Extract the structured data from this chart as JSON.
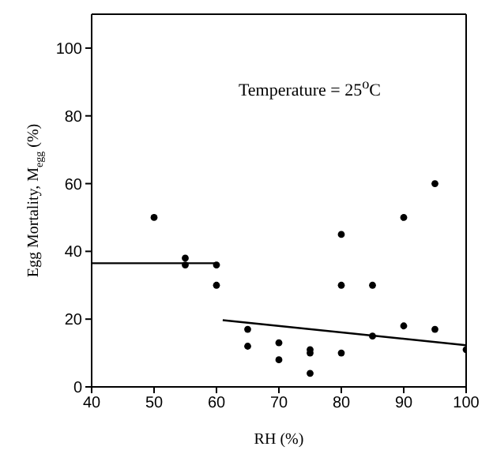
{
  "chart_data": {
    "type": "scatter",
    "xlabel": "RH (%)",
    "ylabel": "Egg Mortality, M$_{egg}$ (%)",
    "annotations": [
      "Temperature = 25$^{o}$C"
    ],
    "xlim": [
      40,
      100
    ],
    "ylim": [
      0,
      110
    ],
    "xticks": [
      40,
      50,
      60,
      70,
      80,
      90,
      100
    ],
    "yticks": [
      0,
      20,
      40,
      60,
      80,
      100
    ],
    "grid": false,
    "legend": false,
    "marker": "circle",
    "series": [
      {
        "color": "#000000",
        "x": [
          50,
          55,
          55,
          60,
          60,
          65,
          65,
          70,
          70,
          75,
          75,
          75,
          80,
          80,
          80,
          85,
          85,
          90,
          90,
          95,
          95,
          100
        ],
        "values": [
          50,
          38,
          36,
          36,
          30,
          17,
          12,
          13,
          8,
          11,
          10,
          4,
          45,
          30,
          10,
          30,
          15,
          50,
          18,
          60,
          17,
          11
        ]
      },
      {
        "type": "line",
        "color": "#000000",
        "marker": "none",
        "line_style": "solid",
        "x": [
          40,
          60
        ],
        "values": [
          36.5,
          36.5
        ]
      },
      {
        "type": "line",
        "color": "#000000",
        "marker": "none",
        "line_style": "solid",
        "x": [
          61,
          100
        ],
        "values": [
          19.7,
          12.3
        ]
      }
    ]
  }
}
